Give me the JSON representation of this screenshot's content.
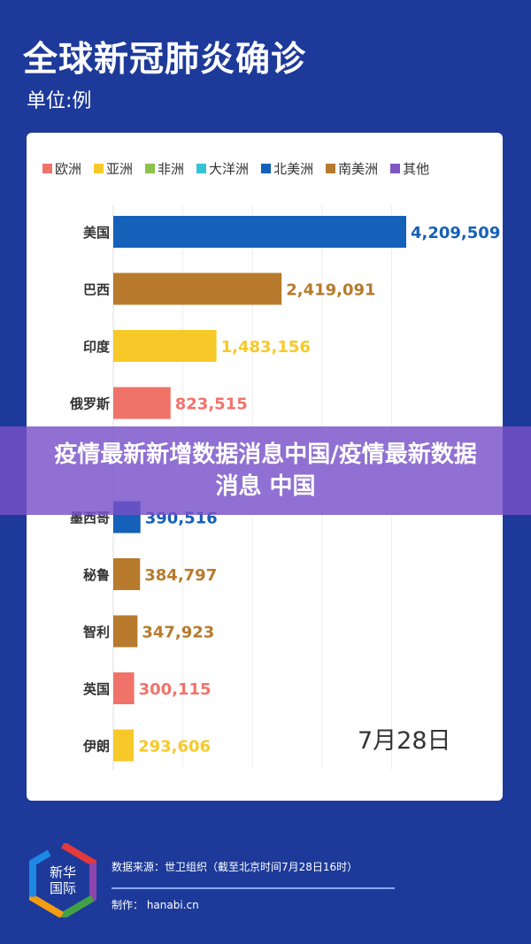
{
  "header": {
    "title": "全球新冠肺炎确诊",
    "unit": "单位:例"
  },
  "banner": {
    "text": "疫情最新新增数据消息中国/疫情最新数据消息 中国"
  },
  "footer": {
    "source": "数据来源：世卫组织（截至北京时间7月28日16时）",
    "maker": "制作：  hanabi.cn",
    "logo_text": "新华国际"
  },
  "chart_data": {
    "type": "bar",
    "orientation": "horizontal",
    "title": "全球新冠肺炎确诊",
    "ylabel": "单位:例",
    "annotation": "7月28日",
    "legend": [
      {
        "name": "欧洲",
        "color": "#f0736a"
      },
      {
        "name": "亚洲",
        "color": "#f7c928"
      },
      {
        "name": "非洲",
        "color": "#8bc34a"
      },
      {
        "name": "大洋洲",
        "color": "#35c3d6"
      },
      {
        "name": "北美洲",
        "color": "#1560b8"
      },
      {
        "name": "南美洲",
        "color": "#b87a2c"
      },
      {
        "name": "其他",
        "color": "#7e57c2"
      }
    ],
    "legend_position": "top",
    "categories": [
      "美国",
      "巴西",
      "印度",
      "俄罗斯",
      "墨西哥",
      "秘鲁",
      "智利",
      "英国",
      "伊朗"
    ],
    "values": [
      4209509,
      2419091,
      1483156,
      823515,
      390516,
      384797,
      347923,
      300115,
      293606
    ],
    "labels": [
      "4,209,509",
      "2,419,091",
      "1,483,156",
      "823,515",
      "390,516",
      "384,797",
      "347,923",
      "300,115",
      "293,606"
    ],
    "regions": [
      "北美洲",
      "南美洲",
      "亚洲",
      "欧洲",
      "北美洲",
      "南美洲",
      "南美洲",
      "欧洲",
      "亚洲"
    ],
    "xlim": [
      0,
      4209509
    ]
  }
}
